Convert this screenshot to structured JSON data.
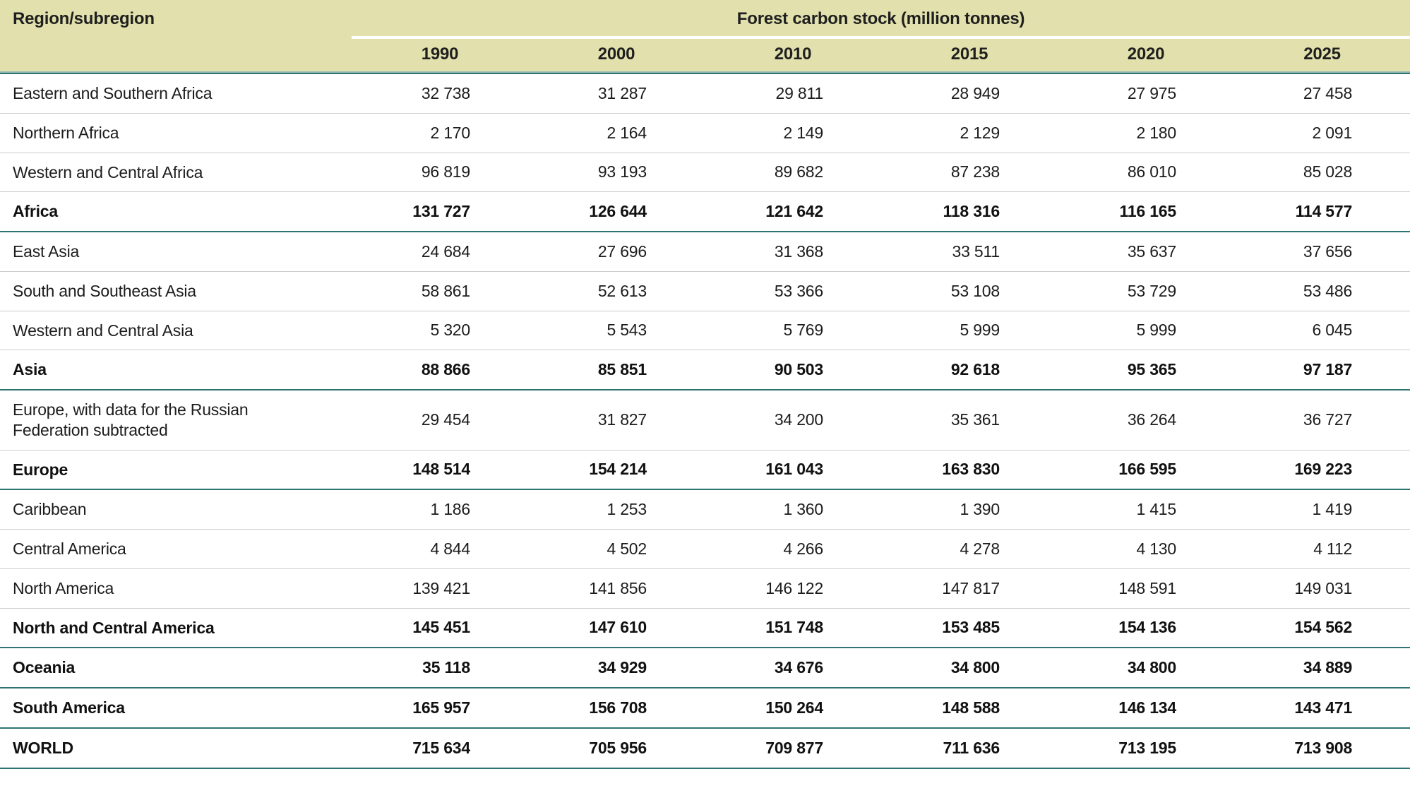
{
  "table": {
    "region_header": "Region/subregion",
    "group_header": "Forest carbon stock (million tonnes)",
    "years": [
      "1990",
      "2000",
      "2010",
      "2015",
      "2020",
      "2025"
    ],
    "rows": [
      {
        "region": "Eastern and Southern Africa",
        "bold": false,
        "teal_after": false,
        "values": [
          "32 738",
          "31 287",
          "29 811",
          "28 949",
          "27 975",
          "27 458"
        ]
      },
      {
        "region": "Northern Africa",
        "bold": false,
        "teal_after": false,
        "values": [
          "2 170",
          "2 164",
          "2 149",
          "2 129",
          "2 180",
          "2 091"
        ]
      },
      {
        "region": "Western and Central Africa",
        "bold": false,
        "teal_after": false,
        "values": [
          "96 819",
          "93 193",
          "89 682",
          "87 238",
          "86 010",
          "85 028"
        ]
      },
      {
        "region": "Africa",
        "bold": true,
        "teal_after": true,
        "values": [
          "131 727",
          "126 644",
          "121 642",
          "118 316",
          "116 165",
          "114 577"
        ]
      },
      {
        "region": "East Asia",
        "bold": false,
        "teal_after": false,
        "values": [
          "24 684",
          "27 696",
          "31 368",
          "33 511",
          "35 637",
          "37 656"
        ]
      },
      {
        "region": "South and Southeast Asia",
        "bold": false,
        "teal_after": false,
        "values": [
          "58 861",
          "52 613",
          "53 366",
          "53 108",
          "53 729",
          "53 486"
        ]
      },
      {
        "region": "Western and Central Asia",
        "bold": false,
        "teal_after": false,
        "values": [
          "5 320",
          "5 543",
          "5 769",
          "5 999",
          "5 999",
          "6 045"
        ]
      },
      {
        "region": "Asia",
        "bold": true,
        "teal_after": true,
        "values": [
          "88 866",
          "85 851",
          "90 503",
          "92 618",
          "95 365",
          "97 187"
        ]
      },
      {
        "region": "Europe, with data for the Russian\nFederation subtracted",
        "bold": false,
        "teal_after": false,
        "values": [
          "29 454",
          "31 827",
          "34 200",
          "35 361",
          "36 264",
          "36 727"
        ]
      },
      {
        "region": "Europe",
        "bold": true,
        "teal_after": true,
        "values": [
          "148 514",
          "154 214",
          "161 043",
          "163 830",
          "166 595",
          "169 223"
        ]
      },
      {
        "region": "Caribbean",
        "bold": false,
        "teal_after": false,
        "values": [
          "1 186",
          "1 253",
          "1 360",
          "1 390",
          "1 415",
          "1 419"
        ]
      },
      {
        "region": "Central America",
        "bold": false,
        "teal_after": false,
        "values": [
          "4 844",
          "4 502",
          "4 266",
          "4 278",
          "4 130",
          "4 112"
        ]
      },
      {
        "region": "North America",
        "bold": false,
        "teal_after": false,
        "values": [
          "139 421",
          "141 856",
          "146 122",
          "147 817",
          "148 591",
          "149 031"
        ]
      },
      {
        "region": "North and Central America",
        "bold": true,
        "teal_after": true,
        "values": [
          "145 451",
          "147 610",
          "151 748",
          "153 485",
          "154 136",
          "154 562"
        ]
      },
      {
        "region": "Oceania",
        "bold": true,
        "teal_after": true,
        "values": [
          "35 118",
          "34 929",
          "34 676",
          "34 800",
          "34 800",
          "34 889"
        ]
      },
      {
        "region": "South America",
        "bold": true,
        "teal_after": true,
        "values": [
          "165 957",
          "156 708",
          "150 264",
          "148 588",
          "146 134",
          "143 471"
        ]
      },
      {
        "region": "WORLD",
        "bold": true,
        "teal_after": true,
        "values": [
          "715 634",
          "705 956",
          "709 877",
          "711 636",
          "713 195",
          "713 908"
        ]
      }
    ]
  },
  "colors": {
    "header_background": "#e2e1ad",
    "teal_rule": "#2e7472",
    "teal_rule_light": "#9dbfb8",
    "row_separator": "#cdcdcd",
    "text": "#1c1c1c"
  }
}
